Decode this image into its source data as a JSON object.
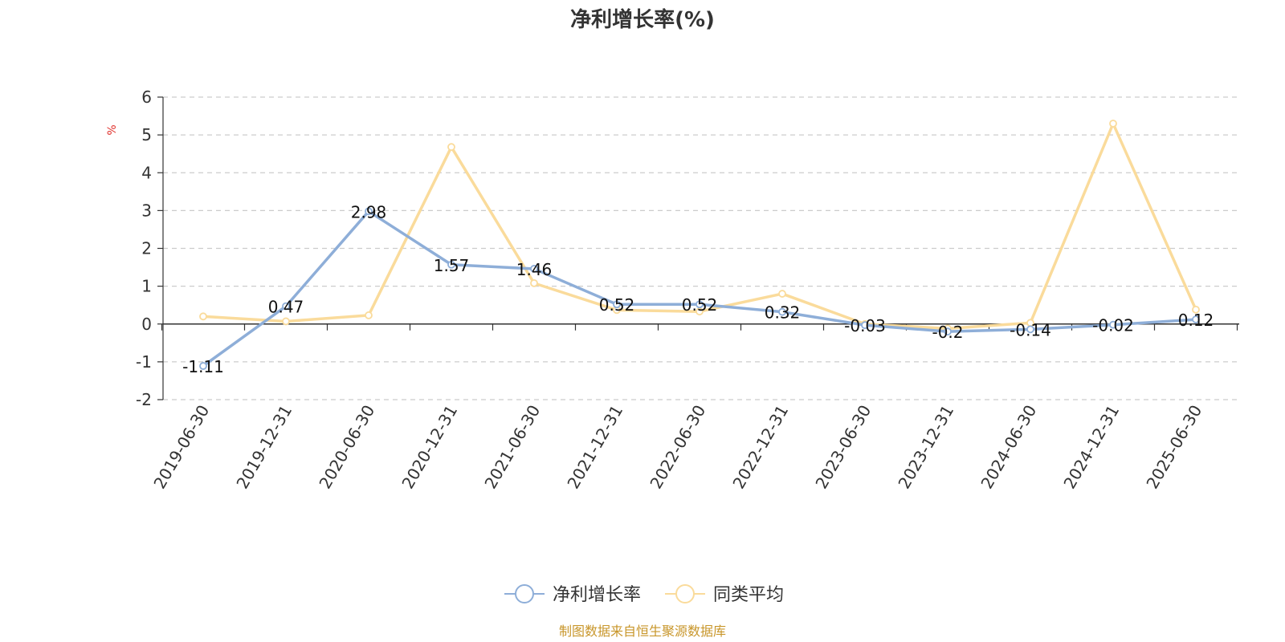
{
  "chart_data": {
    "type": "line",
    "title": "净利增长率(%)",
    "ylabel": "%",
    "ylim": [
      -2,
      6
    ],
    "yticks": [
      -2,
      -1,
      0,
      1,
      2,
      3,
      4,
      5,
      6
    ],
    "grid": true,
    "legend_position": "bottom-center",
    "categories": [
      "2019-06-30",
      "2019-12-31",
      "2020-06-30",
      "2020-12-31",
      "2021-06-30",
      "2021-12-31",
      "2022-06-30",
      "2022-12-31",
      "2023-06-30",
      "2023-12-31",
      "2024-06-30",
      "2024-12-31",
      "2025-06-30"
    ],
    "series": [
      {
        "name": "净利增长率",
        "color": "#8eaed8",
        "show_labels": true,
        "values": [
          -1.11,
          0.47,
          2.98,
          1.57,
          1.46,
          0.52,
          0.52,
          0.32,
          -0.03,
          -0.2,
          -0.14,
          -0.02,
          0.12
        ],
        "labels": [
          "-1.11",
          "0.47",
          "2.98",
          "1.57",
          "1.46",
          "0.52",
          "0.52",
          "0.32",
          "-0.03",
          "-0.2",
          "-0.14",
          "-0.02",
          "0.12"
        ]
      },
      {
        "name": "同类平均",
        "color": "#fadb9b",
        "show_labels": false,
        "values": [
          0.2,
          0.07,
          0.23,
          4.68,
          1.08,
          0.37,
          0.33,
          0.8,
          0.0,
          -0.12,
          0.03,
          5.3,
          0.38
        ]
      }
    ]
  },
  "source": "制图数据来自恒生聚源数据库"
}
